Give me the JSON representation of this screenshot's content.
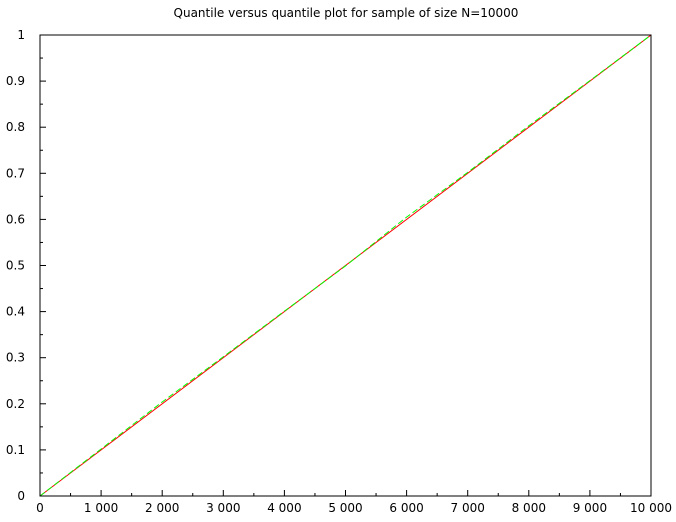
{
  "chart_data": {
    "type": "line",
    "title": "Quantile versus quantile plot for sample of size N=10000",
    "xlabel": "",
    "ylabel": "",
    "xlim": [
      0,
      10000
    ],
    "ylim": [
      0,
      1
    ],
    "x_ticks": [
      {
        "value": 0,
        "label": "0"
      },
      {
        "value": 1000,
        "label": "1 000"
      },
      {
        "value": 2000,
        "label": "2 000"
      },
      {
        "value": 3000,
        "label": "3 000"
      },
      {
        "value": 4000,
        "label": "4 000"
      },
      {
        "value": 5000,
        "label": "5 000"
      },
      {
        "value": 6000,
        "label": "6 000"
      },
      {
        "value": 7000,
        "label": "7 000"
      },
      {
        "value": 8000,
        "label": "8 000"
      },
      {
        "value": 9000,
        "label": "9 000"
      },
      {
        "value": 10000,
        "label": "10 000"
      }
    ],
    "y_ticks": [
      {
        "value": 0,
        "label": "0"
      },
      {
        "value": 0.1,
        "label": "0.1"
      },
      {
        "value": 0.2,
        "label": "0.2"
      },
      {
        "value": 0.3,
        "label": "0.3"
      },
      {
        "value": 0.4,
        "label": "0.4"
      },
      {
        "value": 0.5,
        "label": "0.5"
      },
      {
        "value": 0.6,
        "label": "0.6"
      },
      {
        "value": 0.7,
        "label": "0.7"
      },
      {
        "value": 0.8,
        "label": "0.8"
      },
      {
        "value": 0.9,
        "label": "0.9"
      },
      {
        "value": 1,
        "label": "1"
      }
    ],
    "grid": false,
    "legend": "none",
    "series": [
      {
        "color": "#ff0000",
        "style": "solid",
        "x": [
          0,
          10000
        ],
        "y": [
          0,
          1
        ]
      },
      {
        "color": "#00ff00",
        "style": "dashed",
        "x": [
          0,
          1000,
          2000,
          3000,
          4000,
          5000,
          6000,
          7000,
          8000,
          9000,
          10000
        ],
        "y": [
          0,
          0.102,
          0.204,
          0.302,
          0.401,
          0.499,
          0.605,
          0.702,
          0.803,
          0.901,
          1
        ]
      }
    ]
  }
}
